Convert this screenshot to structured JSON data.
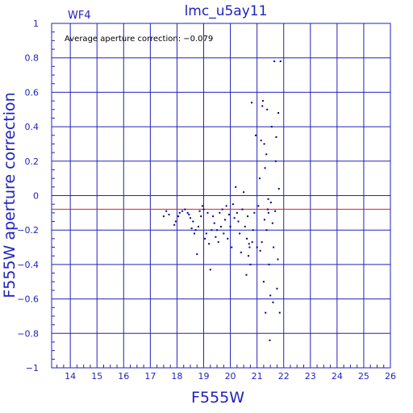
{
  "chart_data": {
    "type": "scatter",
    "title": "lmc_u5ay11",
    "panel_label": "WF4",
    "annotation": "Average aperture correction: −0.079",
    "xlabel": "F555W",
    "ylabel": "F555W aperture correction",
    "xlim": [
      13.3,
      26
    ],
    "ylim": [
      -1,
      1
    ],
    "x_ticks": [
      14,
      15,
      16,
      17,
      18,
      19,
      20,
      21,
      22,
      23,
      24,
      25,
      26
    ],
    "y_ticks": [
      {
        "v": 1,
        "label": "1"
      },
      {
        "v": 0.8,
        "label": "0.8"
      },
      {
        "v": 0.6,
        "label": "0.6"
      },
      {
        "v": 0.4,
        "label": "0.4"
      },
      {
        "v": 0.2,
        "label": "0.2"
      },
      {
        "v": 0,
        "label": "0"
      },
      {
        "v": -0.2,
        "label": "−0.2"
      },
      {
        "v": -0.4,
        "label": "−0.4"
      },
      {
        "v": -0.6,
        "label": "−0.6"
      },
      {
        "v": -0.8,
        "label": "−0.8"
      },
      {
        "v": -1,
        "label": "−1"
      }
    ],
    "grid": true,
    "reference_line": -0.079,
    "colors": {
      "axes": "#2222bb",
      "points": "#00008b",
      "reference": "#dd2222"
    },
    "points": [
      [
        17.5,
        -0.12
      ],
      [
        17.6,
        -0.09
      ],
      [
        17.9,
        -0.17
      ],
      [
        17.95,
        -0.15
      ],
      [
        18.05,
        -0.12
      ],
      [
        18.1,
        -0.1
      ],
      [
        18.3,
        -0.08
      ],
      [
        18.4,
        -0.1
      ],
      [
        18.5,
        -0.13
      ],
      [
        18.6,
        -0.15
      ],
      [
        18.7,
        -0.2
      ],
      [
        18.75,
        -0.34
      ],
      [
        18.8,
        -0.18
      ],
      [
        18.9,
        -0.12
      ],
      [
        18.95,
        -0.06
      ],
      [
        19.0,
        -0.08
      ],
      [
        19.1,
        -0.22
      ],
      [
        19.2,
        -0.28
      ],
      [
        19.25,
        -0.43
      ],
      [
        19.35,
        -0.12
      ],
      [
        19.4,
        -0.16
      ],
      [
        19.5,
        -0.2
      ],
      [
        19.55,
        -0.27
      ],
      [
        19.6,
        -0.1
      ],
      [
        19.7,
        -0.08
      ],
      [
        19.75,
        -0.22
      ],
      [
        19.8,
        -0.14
      ],
      [
        19.9,
        -0.25
      ],
      [
        19.95,
        -0.11
      ],
      [
        20.0,
        -0.18
      ],
      [
        20.05,
        -0.3
      ],
      [
        20.1,
        -0.05
      ],
      [
        20.15,
        -0.13
      ],
      [
        20.2,
        0.05
      ],
      [
        20.3,
        -0.15
      ],
      [
        20.35,
        -0.22
      ],
      [
        20.4,
        -0.33
      ],
      [
        20.45,
        -0.08
      ],
      [
        20.5,
        0.02
      ],
      [
        20.55,
        -0.18
      ],
      [
        20.6,
        -0.46
      ],
      [
        20.65,
        -0.12
      ],
      [
        20.7,
        -0.28
      ],
      [
        20.75,
        -0.4
      ],
      [
        20.8,
        0.54
      ],
      [
        20.85,
        -0.2
      ],
      [
        20.9,
        -0.1
      ],
      [
        20.95,
        0.35
      ],
      [
        21.0,
        -0.3
      ],
      [
        21.05,
        -0.06
      ],
      [
        21.1,
        0.1
      ],
      [
        21.12,
        -0.32
      ],
      [
        21.15,
        0.32
      ],
      [
        21.2,
        0.52
      ],
      [
        21.22,
        0.55
      ],
      [
        21.25,
        -0.5
      ],
      [
        21.27,
        0.3
      ],
      [
        21.3,
        0.16
      ],
      [
        21.32,
        -0.68
      ],
      [
        21.35,
        0.24
      ],
      [
        21.38,
        0.5
      ],
      [
        21.4,
        -0.08
      ],
      [
        21.42,
        -0.02
      ],
      [
        21.45,
        -0.4
      ],
      [
        21.48,
        -0.84
      ],
      [
        21.5,
        -0.58
      ],
      [
        21.55,
        0.4
      ],
      [
        21.6,
        -0.62
      ],
      [
        21.65,
        0.78
      ],
      [
        21.7,
        0.2
      ],
      [
        21.72,
        0.34
      ],
      [
        21.75,
        -0.54
      ],
      [
        21.8,
        0.48
      ],
      [
        21.82,
        0.04
      ],
      [
        21.85,
        -0.68
      ],
      [
        21.88,
        0.78
      ],
      [
        17.7,
        -0.11
      ],
      [
        18.2,
        -0.09
      ],
      [
        18.45,
        -0.11
      ],
      [
        18.55,
        -0.19
      ],
      [
        18.65,
        -0.22
      ],
      [
        18.85,
        -0.09
      ],
      [
        19.05,
        -0.25
      ],
      [
        19.15,
        -0.1
      ],
      [
        19.3,
        -0.2
      ],
      [
        19.45,
        -0.24
      ],
      [
        19.65,
        -0.18
      ],
      [
        19.85,
        -0.06
      ],
      [
        20.25,
        -0.1
      ],
      [
        20.62,
        -0.25
      ],
      [
        20.68,
        -0.35
      ],
      [
        20.72,
        -0.3
      ],
      [
        20.82,
        -0.27
      ],
      [
        21.18,
        -0.27
      ],
      [
        21.28,
        -0.14
      ],
      [
        21.36,
        -0.2
      ],
      [
        21.43,
        -0.1
      ],
      [
        21.52,
        -0.04
      ],
      [
        21.58,
        -0.16
      ],
      [
        21.62,
        -0.3
      ],
      [
        21.68,
        -0.09
      ],
      [
        21.78,
        -0.37
      ]
    ]
  }
}
